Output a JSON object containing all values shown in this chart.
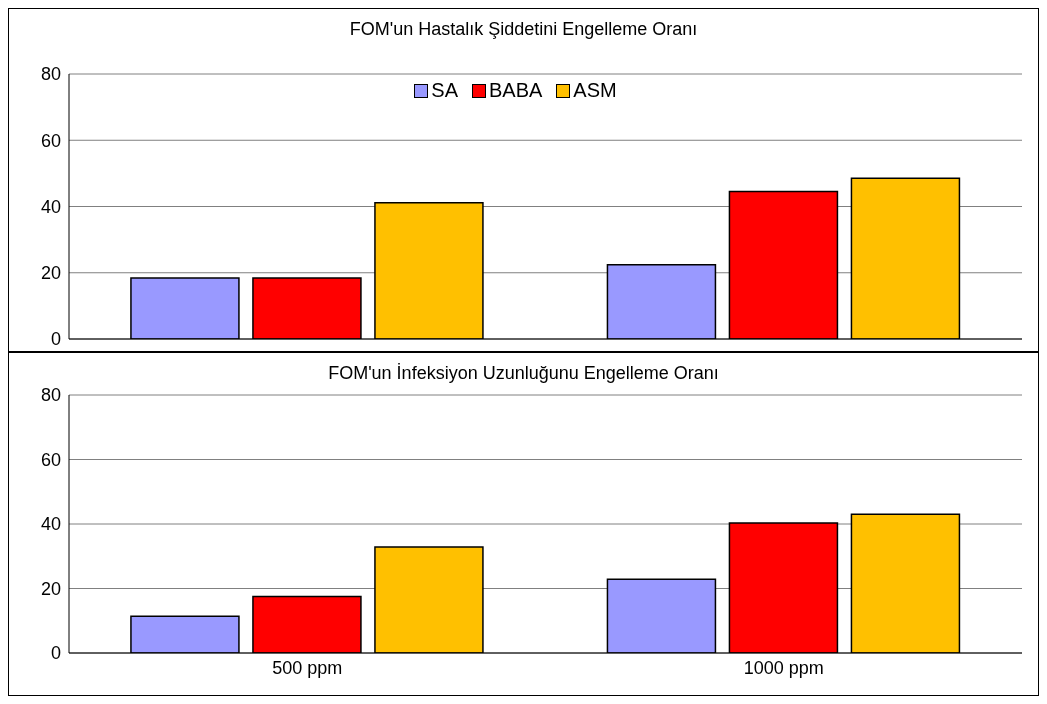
{
  "chart_data": [
    {
      "type": "bar",
      "title": "FOM'un Hastalık Şiddetini Engelleme Oranı",
      "categories": [
        null,
        null
      ],
      "series": [
        {
          "name": "SA",
          "color": "#9999ff",
          "values": [
            18.4,
            22.4
          ]
        },
        {
          "name": "BABA",
          "color": "#ff0000",
          "values": [
            18.4,
            44.5
          ]
        },
        {
          "name": "ASM",
          "color": "#ffc000",
          "values": [
            41.1,
            48.5
          ]
        }
      ],
      "ylim": [
        0,
        80
      ],
      "yticks": [
        0,
        20,
        40,
        60,
        80
      ],
      "grid": "y",
      "legend": "top",
      "tick_labels": "y"
    },
    {
      "type": "bar",
      "title": "FOM'un İnfeksiyon Uzunluğunu Engelleme Oranı",
      "categories": [
        "500 ppm",
        "1000 ppm"
      ],
      "series": [
        {
          "color": "#9999ff",
          "values": [
            11.4,
            22.9
          ]
        },
        {
          "color": "#ff0000",
          "values": [
            17.5,
            40.3
          ]
        },
        {
          "color": "#ffc000",
          "values": [
            32.9,
            43
          ]
        }
      ],
      "ylim": [
        0,
        80
      ],
      "yticks": [
        0,
        20,
        40,
        60,
        80
      ],
      "grid": "y"
    }
  ]
}
